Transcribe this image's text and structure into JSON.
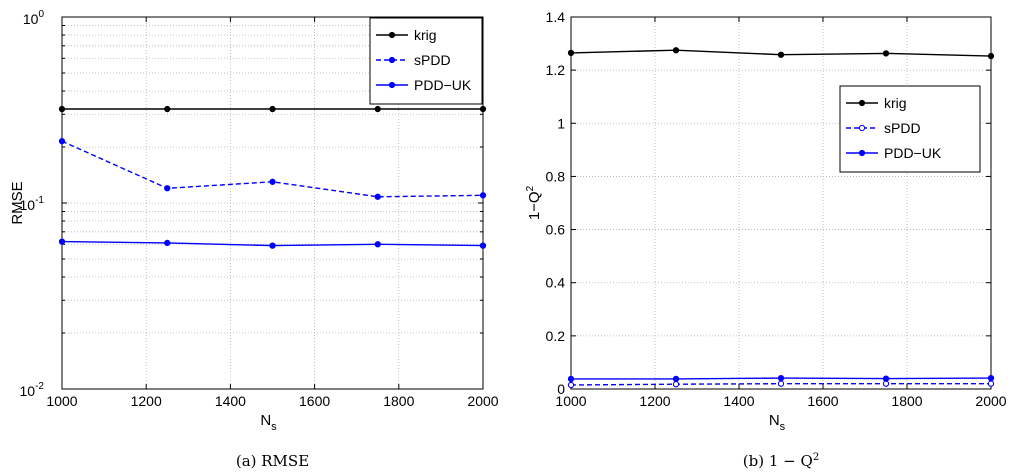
{
  "chart_data": [
    {
      "type": "line",
      "caption": "(a) RMSE",
      "xlabel": "N",
      "xlabel_sub": "s",
      "ylabel": "RMSE",
      "yscale": "log",
      "xlim": [
        1000,
        2000
      ],
      "ylim": [
        0.01,
        1
      ],
      "x_ticks": [
        "1000",
        "1200",
        "1400",
        "1600",
        "1800",
        "2000"
      ],
      "y_ticks": [
        {
          "base": "10",
          "exp": "-2"
        },
        {
          "base": "10",
          "exp": "-1"
        },
        {
          "base": "10",
          "exp": "0"
        }
      ],
      "grid": true,
      "legend_position": "top-right",
      "x": [
        1000,
        1250,
        1500,
        1750,
        2000
      ],
      "series": [
        {
          "name": "krig",
          "values": [
            0.32,
            0.32,
            0.32,
            0.32,
            0.32
          ],
          "color": "#000000",
          "dash": false,
          "marker": "filled"
        },
        {
          "name": "sPDD",
          "values": [
            0.215,
            0.12,
            0.13,
            0.108,
            0.11
          ],
          "color": "#0000ff",
          "dash": true,
          "marker": "filled"
        },
        {
          "name": "PDD−UK",
          "values": [
            0.062,
            0.061,
            0.059,
            0.06,
            0.059
          ],
          "color": "#0000ff",
          "dash": false,
          "marker": "filled"
        }
      ]
    },
    {
      "type": "line",
      "caption": "(b) 1 − Q",
      "caption_sup": "2",
      "xlabel": "N",
      "xlabel_sub": "s",
      "ylabel": "1−Q",
      "ylabel_sup": "2",
      "yscale": "linear",
      "xlim": [
        1000,
        2000
      ],
      "ylim": [
        0,
        1.4
      ],
      "x_ticks": [
        "1000",
        "1200",
        "1400",
        "1600",
        "1800",
        "2000"
      ],
      "y_ticks": [
        "0",
        "0.2",
        "0.4",
        "0.6",
        "0.8",
        "1",
        "1.2",
        "1.4"
      ],
      "grid": true,
      "legend_position": "upper-right",
      "x": [
        1000,
        1250,
        1500,
        1750,
        2000
      ],
      "series": [
        {
          "name": "krig",
          "values": [
            1.265,
            1.275,
            1.258,
            1.263,
            1.253
          ],
          "color": "#000000",
          "dash": false,
          "marker": "filled"
        },
        {
          "name": "sPDD",
          "values": [
            0.015,
            0.018,
            0.02,
            0.02,
            0.02
          ],
          "color": "#0000ff",
          "dash": true,
          "marker": "open"
        },
        {
          "name": "PDD−UK",
          "values": [
            0.038,
            0.038,
            0.041,
            0.039,
            0.041
          ],
          "color": "#0000ff",
          "dash": false,
          "marker": "filled"
        }
      ]
    }
  ]
}
